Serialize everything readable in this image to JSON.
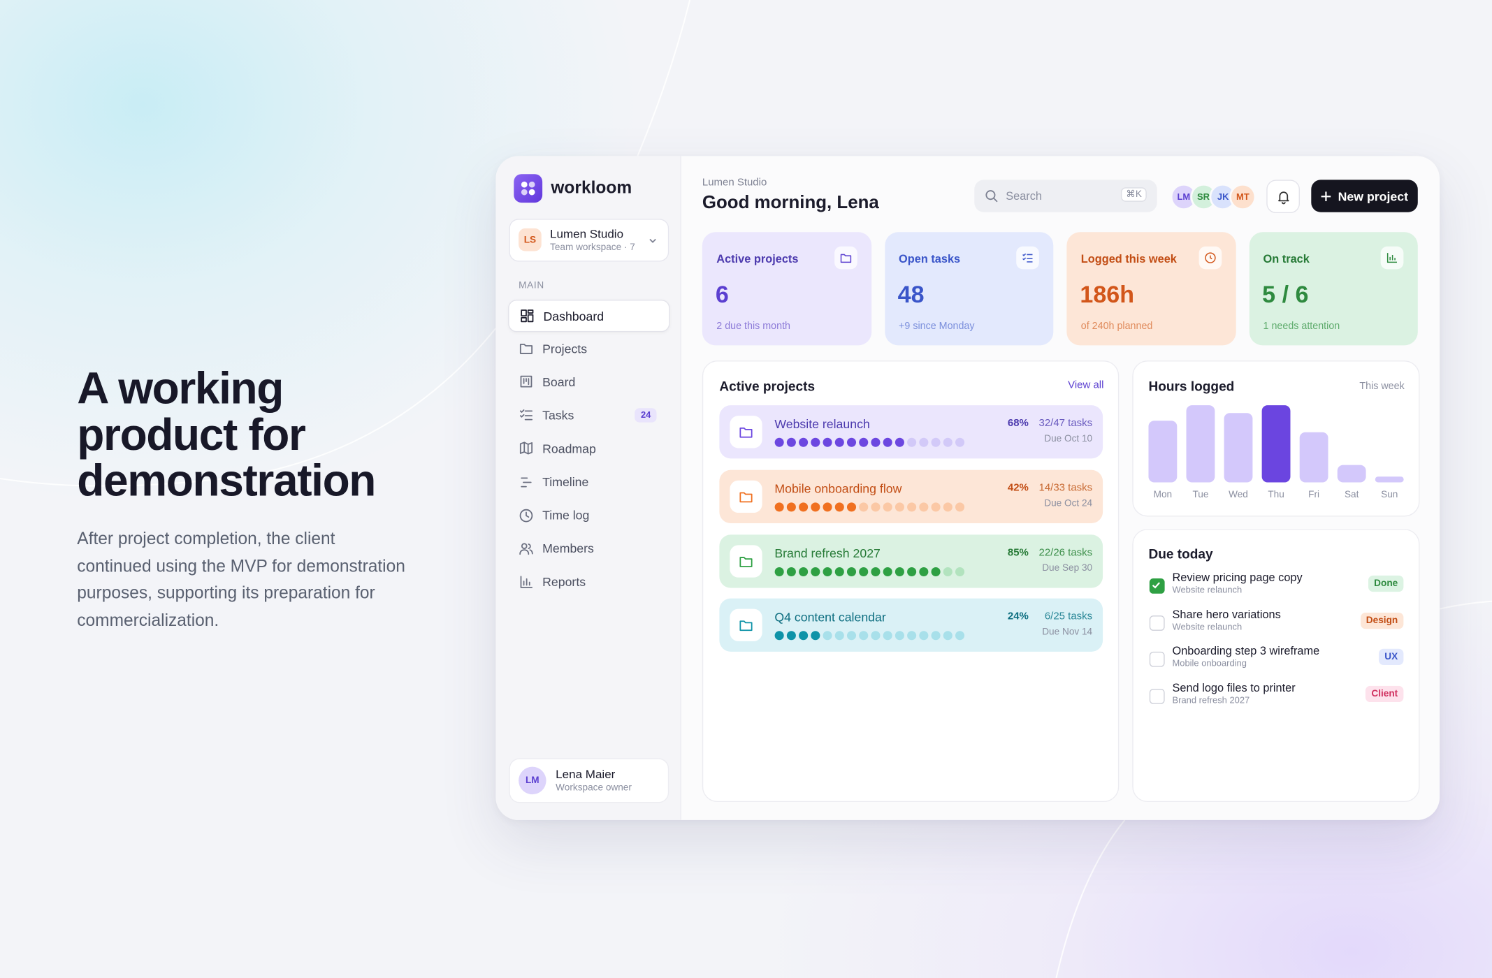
{
  "hero": {
    "title": "A working product for demonstration",
    "body": "After project completion, the client continued using the MVP for demonstration purposes, supporting its preparation for commercialization."
  },
  "sidebar": {
    "brand": "workloom",
    "workspace": {
      "initials": "LS",
      "name": "Lumen Studio",
      "subtitle": "Team workspace · 7"
    },
    "section": "MAIN",
    "nav": [
      {
        "label": "Dashboard"
      },
      {
        "label": "Projects"
      },
      {
        "label": "Board"
      },
      {
        "label": "Tasks",
        "badge": 24
      },
      {
        "label": "Roadmap"
      },
      {
        "label": "Timeline"
      },
      {
        "label": "Time log"
      },
      {
        "label": "Members"
      },
      {
        "label": "Reports"
      }
    ],
    "user": {
      "initials": "LM",
      "name": "Lena Maier",
      "role": "Workspace owner"
    }
  },
  "header": {
    "workspace": "Lumen Studio",
    "greeting": "Good morning, Lena",
    "search_placeholder": "Search",
    "shortcut": "⌘K",
    "avatars": [
      "LM",
      "SR",
      "JK",
      "MT"
    ],
    "button": "New project"
  },
  "stats": [
    {
      "label": "Active projects",
      "value": 6,
      "note": "2 due this month"
    },
    {
      "label": "Open tasks",
      "value": 48,
      "note": "+9 since Monday"
    },
    {
      "label": "Logged this week",
      "value": "186h",
      "note": "of 240h planned"
    },
    {
      "label": "On track",
      "value": "5 / 6",
      "note": "1 needs attention"
    }
  ],
  "projects": {
    "title": "Active projects",
    "link": "View all",
    "items": [
      {
        "name": "Website relaunch",
        "progress": 68,
        "progress_label": "68%",
        "tasks": "32/47 tasks",
        "due": "Due Oct 10"
      },
      {
        "name": "Mobile onboarding flow",
        "progress": 42,
        "progress_label": "42%",
        "tasks": "14/33 tasks",
        "due": "Due Oct 24"
      },
      {
        "name": "Brand refresh 2027",
        "progress": 85,
        "progress_label": "85%",
        "tasks": "22/26 tasks",
        "due": "Due Sep 30"
      },
      {
        "name": "Q4 content calendar",
        "progress": 24,
        "progress_label": "24%",
        "tasks": "6/25 tasks",
        "due": "Due Nov 14"
      }
    ]
  },
  "hours_chart": {
    "type": "bar",
    "title": "Hours logged",
    "subtitle": "This week",
    "categories": [
      "Mon",
      "Tue",
      "Wed",
      "Thu",
      "Fri",
      "Sat",
      "Sun"
    ],
    "values": [
      32,
      40,
      36,
      40,
      26,
      9,
      3
    ],
    "colors": [
      "#d3c8fb",
      "#d3c8fb",
      "#d3c8fb",
      "#6b45e0",
      "#d3c8fb",
      "#d3c8fb",
      "#d3c8fb"
    ]
  },
  "due_today": {
    "title": "Due today",
    "items": [
      {
        "task": "Review pricing page copy",
        "project": "Website relaunch",
        "tag": "Done",
        "done": true
      },
      {
        "task": "Share hero variations",
        "project": "Website relaunch",
        "tag": "Design",
        "done": false
      },
      {
        "task": "Onboarding step 3 wireframe",
        "project": "Mobile onboarding",
        "tag": "UX",
        "done": false
      },
      {
        "task": "Send logo files to printer",
        "project": "Brand refresh 2027",
        "tag": "Client",
        "done": false
      }
    ]
  }
}
